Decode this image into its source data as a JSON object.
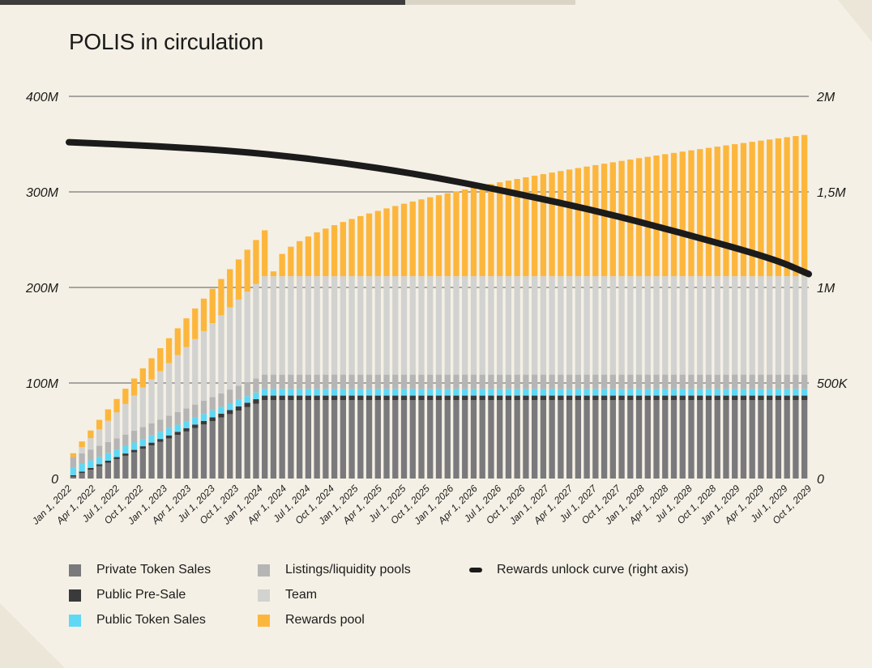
{
  "chart_data": {
    "type": "bar",
    "stacked": true,
    "title": "POLIS in circulation",
    "x_start_quarter": "Jan 1, 2022",
    "x_labels": [
      "Jan 1, 2022",
      "Apr 1, 2022",
      "Jul 1, 2022",
      "Oct 1, 2022",
      "Jan 1, 2023",
      "Apr 1, 2023",
      "Jul 1, 2023",
      "Oct 1, 2023",
      "Jan 1, 2024",
      "Apr 1, 2024",
      "Jul 1, 2024",
      "Oct 1, 2024",
      "Jan 1, 2025",
      "Apr 1, 2025",
      "Jul 1, 2025",
      "Oct 1, 2025",
      "Jan 1, 2026",
      "Apr 1, 2026",
      "Jul 1, 2026",
      "Oct 1, 2026",
      "Jan 1, 2027",
      "Apr 1, 2027",
      "Jul 1, 2027",
      "Oct 1, 2027",
      "Jan 1, 2028",
      "Apr 1, 2028",
      "Jul 1, 2028",
      "Oct 1, 2028",
      "Jan 1, 2029",
      "Apr 1, 2029",
      "Jul 1, 2029",
      "Oct 1, 2029"
    ],
    "bars_per_label": 3,
    "left_axis": {
      "ticks": [
        "0",
        "100M",
        "200M",
        "300M",
        "400M"
      ],
      "ylim": [
        0,
        400000000
      ]
    },
    "right_axis": {
      "ticks": [
        "0",
        "500K",
        "1M",
        "1,5M",
        "2M"
      ],
      "ylim": [
        0,
        2000000
      ]
    },
    "grid": true,
    "legend_position": "bottom",
    "series": [
      {
        "name": "Private Token Sales",
        "color": "#7a797c",
        "ramp": {
          "start": 2000000,
          "end": 82000000,
          "ramp_bars": 23
        }
      },
      {
        "name": "Public Pre-Sale",
        "color": "#3a393b",
        "ramp": {
          "start": 1500000,
          "end": 4800000,
          "ramp_bars": 23
        }
      },
      {
        "name": "Public Token Sales",
        "color": "#5fd8f5",
        "ramp": {
          "start": 8000000,
          "end": 7000000,
          "ramp_bars": 23
        }
      },
      {
        "name": "Listings/liquidity pools",
        "color": "#b5b5b5",
        "ramp": {
          "start": 11000000,
          "end": 15000000,
          "ramp_bars": 23
        }
      },
      {
        "name": "Team",
        "color": "#d2d2d0",
        "ramp": {
          "start": 0,
          "end": 103000000,
          "ramp_bars": 23
        }
      },
      {
        "name": "Rewards pool",
        "color": "#fdb63c",
        "ramp": {
          "start": 4000000,
          "end": 48000000,
          "ramp_bars": 23
        },
        "tail_end": 361000000
      }
    ],
    "line": {
      "name": "Rewards unlock curve (right axis)",
      "color": "#1b1b1b",
      "points": [
        [
          0,
          1760000
        ],
        [
          10,
          1740000
        ],
        [
          20,
          1710000
        ],
        [
          30,
          1660000
        ],
        [
          40,
          1590000
        ],
        [
          50,
          1500000
        ],
        [
          60,
          1400000
        ],
        [
          70,
          1280000
        ],
        [
          80,
          1150000
        ],
        [
          84,
          1070000
        ]
      ]
    }
  }
}
